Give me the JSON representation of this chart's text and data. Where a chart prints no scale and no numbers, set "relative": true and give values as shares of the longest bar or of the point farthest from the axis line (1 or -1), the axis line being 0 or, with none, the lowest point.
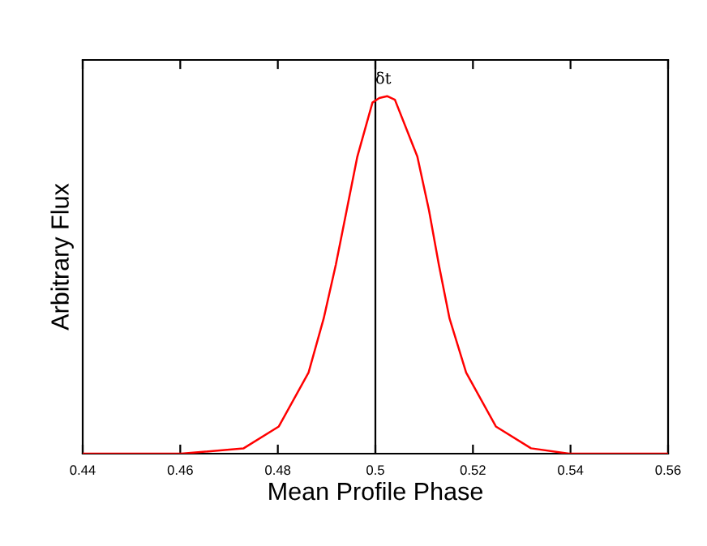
{
  "chart_data": {
    "type": "line",
    "xlabel": "Mean Profile Phase",
    "ylabel": "Arbitrary Flux",
    "relative": true,
    "xlim": [
      0.44,
      0.56
    ],
    "xticks": [
      0.44,
      0.46,
      0.48,
      0.5,
      0.52,
      0.54,
      0.56
    ],
    "tick_labels": "x",
    "grid": false,
    "legend": false,
    "marker": "none",
    "line_style": "solid",
    "ref_lines": [
      {
        "axis": "x",
        "value": 0.5,
        "label": "δt",
        "color": "#000000"
      }
    ],
    "series": [
      {
        "color": "#ff0000",
        "x": [
          0.44,
          0.4602,
          0.473,
          0.4802,
          0.4863,
          0.4894,
          0.4919,
          0.4941,
          0.4963,
          0.4994,
          0.5008,
          0.5024,
          0.504,
          0.5086,
          0.511,
          0.513,
          0.5152,
          0.5186,
          0.5247,
          0.5319,
          0.5397,
          0.56
        ],
        "values": [
          0,
          0,
          0.015,
          0.076,
          0.227,
          0.378,
          0.529,
          0.68,
          0.831,
          0.982,
          0.995,
          1,
          0.99,
          0.831,
          0.68,
          0.529,
          0.378,
          0.227,
          0.076,
          0.015,
          0,
          0
        ]
      }
    ]
  }
}
